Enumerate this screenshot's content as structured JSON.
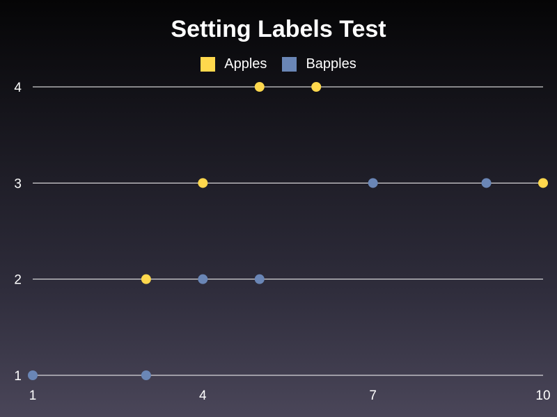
{
  "chart_data": {
    "type": "scatter",
    "title": "Setting Labels Test",
    "xlabel": "",
    "ylabel": "",
    "xlim": [
      1,
      10
    ],
    "ylim": [
      1,
      4
    ],
    "x_ticks": [
      1,
      4,
      7,
      10
    ],
    "y_ticks": [
      1,
      2,
      3,
      4
    ],
    "grid": "horizontal",
    "legend_position": "top-center",
    "series": [
      {
        "name": "Apples",
        "color": "#ffd84d",
        "points": [
          {
            "x": 5,
            "y": 4
          },
          {
            "x": 6,
            "y": 4
          },
          {
            "x": 4,
            "y": 3
          },
          {
            "x": 10,
            "y": 3
          },
          {
            "x": 3,
            "y": 2
          }
        ]
      },
      {
        "name": "Bapples",
        "color": "#6a86b6",
        "points": [
          {
            "x": 7,
            "y": 3
          },
          {
            "x": 9,
            "y": 3
          },
          {
            "x": 4,
            "y": 2
          },
          {
            "x": 5,
            "y": 2
          },
          {
            "x": 1,
            "y": 1
          },
          {
            "x": 3,
            "y": 1
          }
        ]
      }
    ]
  }
}
